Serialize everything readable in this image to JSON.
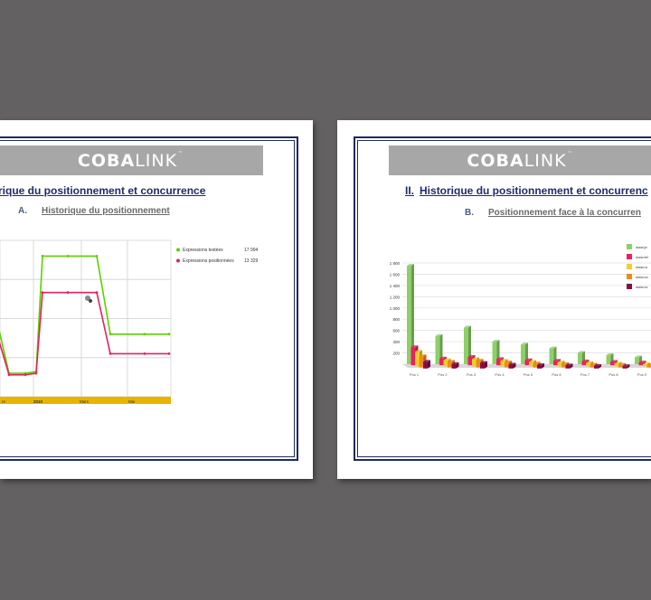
{
  "left_slide": {
    "logo": {
      "part1": "CO",
      "part2": "BA",
      "part3": "LINK",
      "tm": "™"
    },
    "title": "rique du positionnement  et concurrence",
    "subtitle": {
      "letter": "A.",
      "text": "Historique du positionnement"
    },
    "chart_data": {
      "type": "line",
      "x_tick_labels": [
        "re",
        "2010",
        "Mars",
        "Mai"
      ],
      "series": [
        {
          "name": "Expressions testées",
          "legend_value": "17 994",
          "color": "#5cd000",
          "values": [
            9000,
            3000,
            3000,
            3200,
            17994,
            17994,
            17994,
            8000,
            8000,
            8000
          ]
        },
        {
          "name": "Expressions positionnées",
          "legend_value": "13 329",
          "color": "#e0245e",
          "values": [
            7500,
            2800,
            2800,
            3000,
            13329,
            13329,
            13329,
            5500,
            5500,
            5500
          ]
        }
      ],
      "grid": true,
      "legend_placement": "right",
      "axis_bar_color": "#e8b400"
    }
  },
  "right_slide": {
    "logo": {
      "part1": "CO",
      "part2": "BA",
      "part3": "LINK",
      "tm": "™"
    },
    "title_number": "II.",
    "title": "Historique du positionnement  et concurrenc",
    "subtitle": {
      "letter": "B.",
      "text": "Positionnement face à la concurren"
    },
    "chart_data": {
      "type": "bar",
      "categories": [
        "Pos 1",
        "Pos 2",
        "Pos 3",
        "Pos 4",
        "Pos 5",
        "Pos 6",
        "Pos 7",
        "Pos 8",
        "Pos 9"
      ],
      "y_tick_labels": [
        "1 800",
        "1 600",
        "1 400",
        "1 200",
        "1 000",
        "800",
        "600",
        "400",
        "200"
      ],
      "ylim": [
        0,
        1800
      ],
      "series": [
        {
          "name": "www.je",
          "color": "#8fcf6a",
          "values": [
            1750,
            500,
            650,
            400,
            350,
            280,
            200,
            160,
            120
          ]
        },
        {
          "name": "www.fel",
          "color": "#e8225a",
          "values": [
            320,
            120,
            150,
            110,
            90,
            80,
            70,
            60,
            50
          ]
        },
        {
          "name": "www.ro",
          "color": "#f2cf2a",
          "values": [
            260,
            110,
            130,
            100,
            80,
            70,
            60,
            50,
            40
          ]
        },
        {
          "name": "www.co",
          "color": "#f08a1a",
          "values": [
            200,
            100,
            120,
            90,
            70,
            60,
            50,
            45,
            35
          ]
        },
        {
          "name": "www.cc",
          "color": "#8a0a4a",
          "values": [
            120,
            80,
            100,
            70,
            60,
            55,
            45,
            40,
            30
          ]
        }
      ],
      "grid": true,
      "legend_placement": "top-right"
    }
  }
}
